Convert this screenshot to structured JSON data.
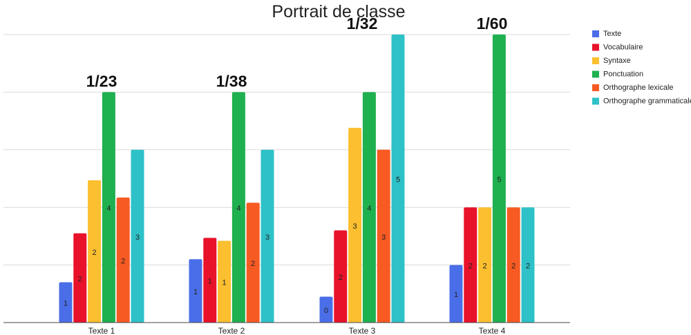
{
  "chart_data": {
    "type": "bar",
    "title": "Portrait de classe",
    "xlabel": "",
    "ylabel": "",
    "ylim": [
      0,
      5
    ],
    "grid": true,
    "legend_position": "right",
    "categories": [
      "Texte 1",
      "Texte 2",
      "Texte 3",
      "Texte 4"
    ],
    "series": [
      {
        "name": "Texte",
        "color": "#4a6ee8",
        "values": [
          0.7,
          1.1,
          0.45,
          1.0
        ],
        "labels": [
          "1",
          "1",
          "0",
          "1"
        ]
      },
      {
        "name": "Vocabulaire",
        "color": "#e8122a",
        "values": [
          1.55,
          1.47,
          1.6,
          2.0
        ],
        "labels": [
          "2",
          "1",
          "2",
          "2"
        ]
      },
      {
        "name": "Syntaxe",
        "color": "#fbbf2f",
        "values": [
          2.47,
          1.42,
          3.38,
          2.0
        ],
        "labels": [
          "2",
          "1",
          "3",
          "2"
        ]
      },
      {
        "name": "Ponctuation",
        "color": "#1fb04f",
        "values": [
          4.0,
          4.0,
          4.0,
          5.0
        ],
        "labels": [
          "4",
          "4",
          "4",
          "5"
        ]
      },
      {
        "name": "Orthographe lexicale",
        "color": "#f75a23",
        "values": [
          2.17,
          2.08,
          3.0,
          2.0
        ],
        "labels": [
          "2",
          "2",
          "3",
          "2"
        ]
      },
      {
        "name": "Orthographe grammaticale",
        "color": "#2ec1c7",
        "values": [
          3.0,
          3.0,
          5.0,
          2.0
        ],
        "labels": [
          "3",
          "3",
          "5",
          "2"
        ]
      }
    ],
    "annotations": [
      "1/23",
      "1/38",
      "1/32",
      "1/60"
    ]
  }
}
